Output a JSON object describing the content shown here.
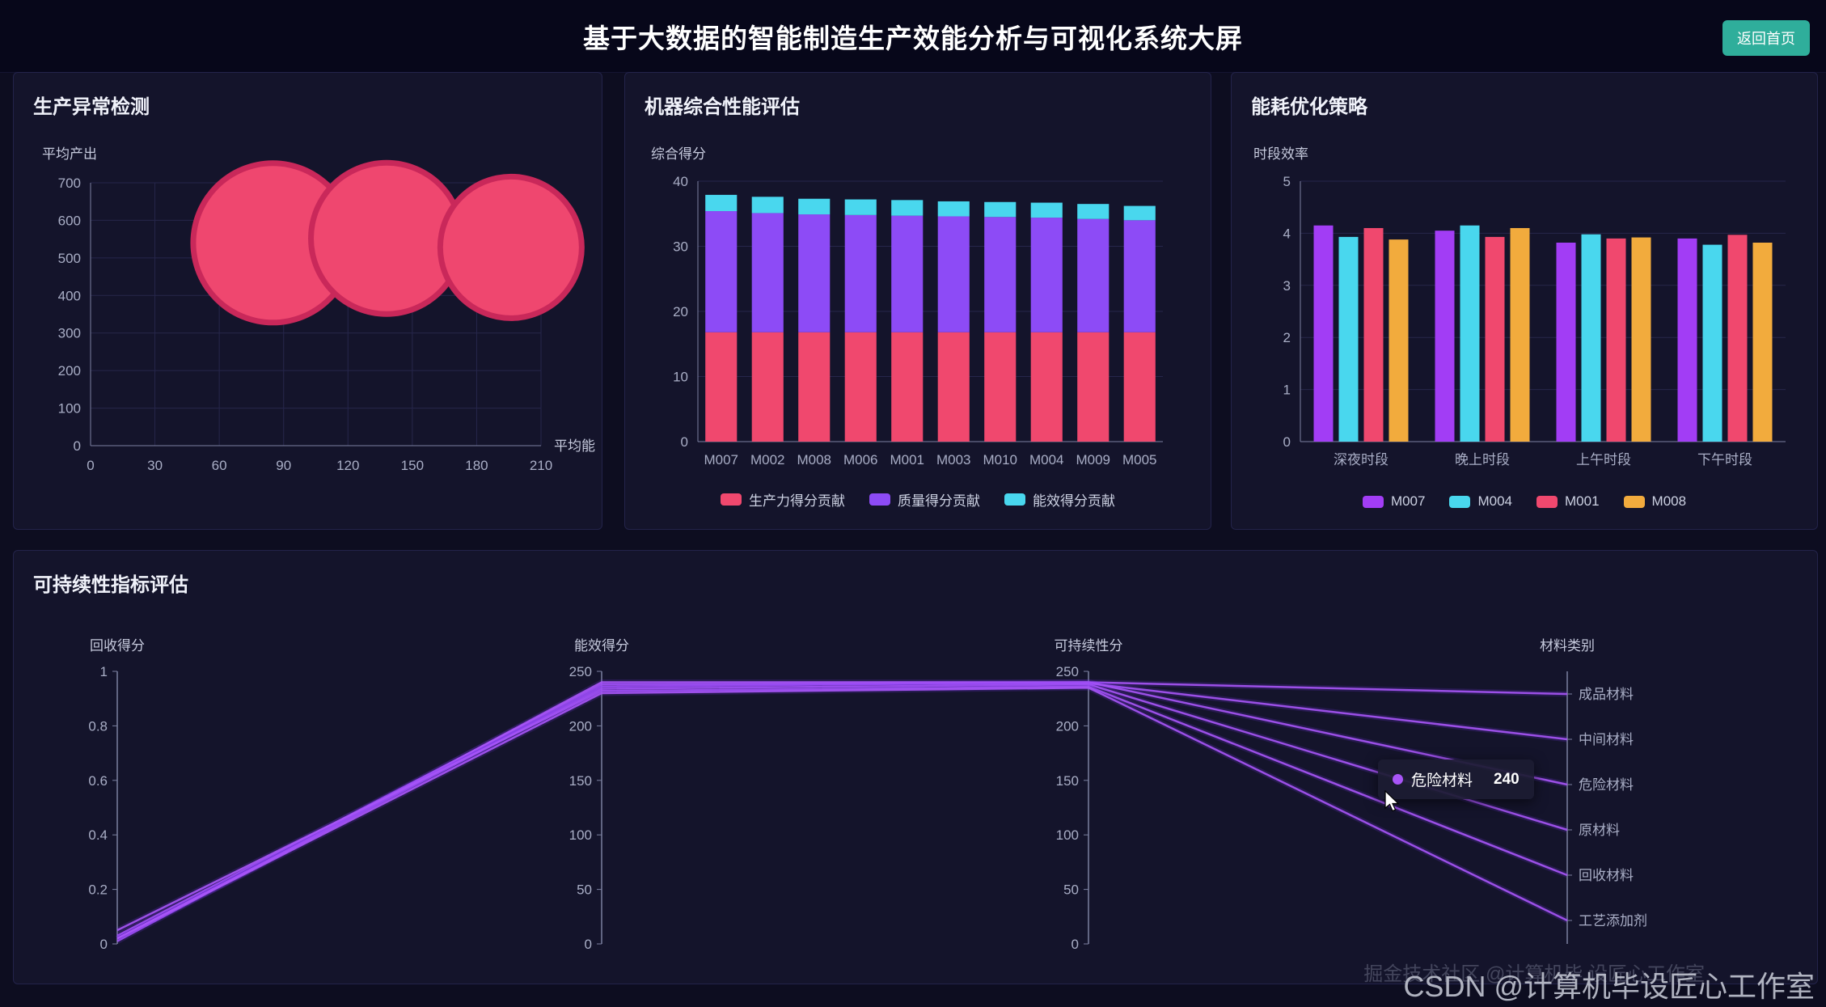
{
  "header": {
    "title": "基于大数据的智能制造生产效能分析与可视化系统大屏",
    "back_button": "返回首页"
  },
  "colors": {
    "background": "#0d0d20",
    "panel": "#14142b",
    "accent_teal": "#2fae9b",
    "pink": "#f0486e",
    "purple": "#8d4bf6",
    "cyan": "#49d7ee",
    "yellow": "#f2ab3d",
    "line_purple": "#a855f7"
  },
  "tooltip": {
    "label": "危险材料",
    "value": "240"
  },
  "watermark": {
    "primary": "CSDN @计算机毕设匠心工作室",
    "secondary": "掘金技术社区 @计算机毕 设匠心工作室"
  },
  "chart_data": [
    {
      "id": "anomaly",
      "type": "scatter",
      "title": "生产异常检测",
      "xlabel": "平均能",
      "ylabel": "平均产出",
      "xlim": [
        0,
        210
      ],
      "xticks": [
        0,
        30,
        60,
        90,
        120,
        150,
        180,
        210
      ],
      "ylim": [
        0,
        700
      ],
      "yticks": [
        0,
        100,
        200,
        300,
        400,
        500,
        600,
        700
      ],
      "grid": true,
      "point_color": "#ef476f",
      "point_shadow": "#c9285a",
      "points": [
        {
          "x": 85,
          "y": 540,
          "r": 95
        },
        {
          "x": 138,
          "y": 552,
          "r": 90
        },
        {
          "x": 196,
          "y": 528,
          "r": 84
        }
      ]
    },
    {
      "id": "machine-performance",
      "type": "bar",
      "stacked": true,
      "title": "机器综合性能评估",
      "ylabel": "综合得分",
      "ylim": [
        0,
        40
      ],
      "yticks": [
        0,
        10,
        20,
        30,
        40
      ],
      "categories": [
        "M007",
        "M002",
        "M008",
        "M006",
        "M001",
        "M003",
        "M010",
        "M004",
        "M009",
        "M005"
      ],
      "legend_position": "bottom",
      "series": [
        {
          "name": "生产力得分贡献",
          "color": "#f0486e",
          "values": [
            16.8,
            16.8,
            16.8,
            16.8,
            16.8,
            16.8,
            16.8,
            16.8,
            16.8,
            16.8
          ]
        },
        {
          "name": "质量得分贡献",
          "color": "#8d4bf6",
          "values": [
            18.6,
            18.3,
            18.1,
            18.0,
            17.9,
            17.8,
            17.7,
            17.6,
            17.4,
            17.2
          ]
        },
        {
          "name": "能效得分贡献",
          "color": "#49d7ee",
          "values": [
            2.5,
            2.5,
            2.4,
            2.4,
            2.4,
            2.3,
            2.3,
            2.3,
            2.3,
            2.2
          ]
        }
      ]
    },
    {
      "id": "energy-optimization",
      "type": "bar",
      "stacked": false,
      "title": "能耗优化策略",
      "ylabel": "时段效率",
      "ylim": [
        0,
        5
      ],
      "yticks": [
        0,
        1,
        2,
        3,
        4,
        5
      ],
      "categories": [
        "深夜时段",
        "晚上时段",
        "上午时段",
        "下午时段"
      ],
      "legend_position": "bottom",
      "series": [
        {
          "name": "M007",
          "color": "#a23df5",
          "values": [
            4.15,
            4.05,
            3.82,
            3.9
          ]
        },
        {
          "name": "M004",
          "color": "#49d7ee",
          "values": [
            3.93,
            4.15,
            3.98,
            3.78
          ]
        },
        {
          "name": "M001",
          "color": "#f0486e",
          "values": [
            4.1,
            3.93,
            3.9,
            3.97
          ]
        },
        {
          "name": "M008",
          "color": "#f2ab3d",
          "values": [
            3.88,
            4.1,
            3.92,
            3.82
          ]
        }
      ]
    },
    {
      "id": "sustainability",
      "type": "parallel",
      "title": "可持续性指标评估",
      "line_color": "#a855f7",
      "line_glow": "#7c3aed",
      "axes": [
        {
          "label": "回收得分",
          "min": 0,
          "max": 1,
          "ticks": [
            0,
            0.2,
            0.4,
            0.6,
            0.8,
            1
          ]
        },
        {
          "label": "能效得分",
          "min": 0,
          "max": 250,
          "ticks": [
            0,
            50,
            100,
            150,
            200,
            250
          ]
        },
        {
          "label": "可持续性分",
          "min": 0,
          "max": 250,
          "ticks": [
            0,
            50,
            100,
            150,
            200,
            250
          ]
        },
        {
          "label": "材料类别",
          "categories": [
            "成品材料",
            "中间材料",
            "危险材料",
            "原材料",
            "回收材料",
            "工艺添加剂"
          ]
        }
      ],
      "lines": [
        {
          "name": "成品材料",
          "values": [
            0.02,
            236,
            240
          ]
        },
        {
          "name": "中间材料",
          "values": [
            0.03,
            238,
            239
          ]
        },
        {
          "name": "危险材料",
          "values": [
            0.01,
            240,
            240
          ]
        },
        {
          "name": "原材料",
          "values": [
            0.02,
            234,
            238
          ]
        },
        {
          "name": "回收材料",
          "values": [
            0.05,
            232,
            236
          ]
        },
        {
          "name": "工艺添加剂",
          "values": [
            0.02,
            230,
            235
          ]
        }
      ]
    }
  ]
}
